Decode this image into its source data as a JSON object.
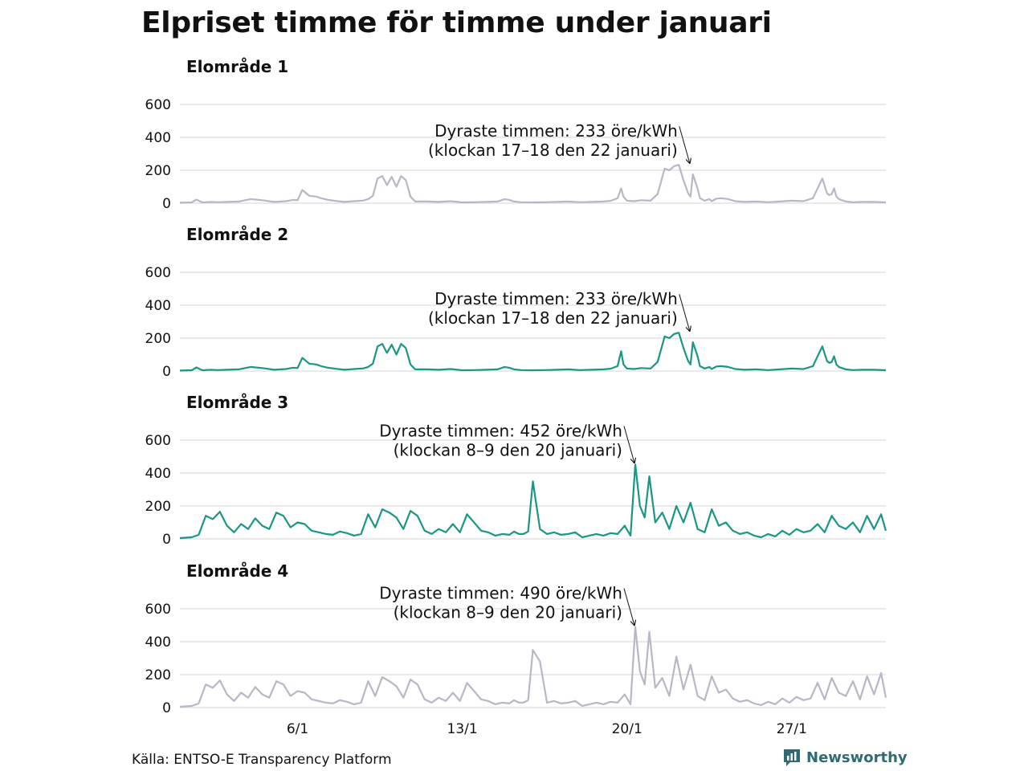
{
  "title": "Elpriset timme för timme under januari",
  "source": "Källa: ENTSO-E Transparency Platform",
  "brand": {
    "name": "Newsworthy",
    "icon": "newsworthy-logo-icon",
    "color": "#2f6b73"
  },
  "colors": {
    "gray": "#b9b6c6",
    "teal": "#1a9784",
    "grid": "#dddddd"
  },
  "chart_data": [
    {
      "type": "line",
      "subtitle": "Elområde 1",
      "color": "gray",
      "xlim": [
        1,
        31
      ],
      "ylim": [
        0,
        600
      ],
      "yticks": [
        0,
        200,
        400,
        600
      ],
      "xticks": [
        {
          "x": 6,
          "label": "6/1"
        },
        {
          "x": 13,
          "label": "13/1"
        },
        {
          "x": 20,
          "label": "20/1"
        },
        {
          "x": 27,
          "label": "27/1"
        }
      ],
      "show_xtick_labels": false,
      "grid": true,
      "annotation": {
        "line1": "Dyraste timmen: 233 öre/kWh",
        "line2": "(klockan 17–18 den 22 januari)",
        "x": 22.7,
        "y": 233
      },
      "x": [
        1,
        1.5,
        1.7,
        1.9,
        2,
        2.3,
        2.6,
        3,
        3.5,
        4,
        4.5,
        5,
        5.5,
        5.8,
        6,
        6.2,
        6.5,
        6.8,
        7,
        7.3,
        7.6,
        8,
        8.4,
        8.8,
        9,
        9.2,
        9.4,
        9.6,
        9.8,
        10,
        10.2,
        10.4,
        10.6,
        10.8,
        11,
        11.5,
        12,
        12.5,
        13,
        13.5,
        14,
        14.5,
        14.8,
        15,
        15.2,
        15.5,
        16,
        16.5,
        17,
        17.5,
        18,
        18.5,
        19,
        19.3,
        19.6,
        19.75,
        19.85,
        20,
        20.3,
        20.6,
        21,
        21.3,
        21.6,
        21.8,
        22,
        22.2,
        22.4,
        22.6,
        22.7,
        22.8,
        23,
        23.1,
        23.3,
        23.5,
        23.6,
        23.8,
        24,
        24.3,
        24.6,
        25,
        25.5,
        26,
        26.5,
        27,
        27.5,
        27.9,
        28.1,
        28.3,
        28.5,
        28.6,
        28.7,
        28.8,
        28.9,
        29,
        29.3,
        29.6,
        30,
        30.5,
        31
      ],
      "y": [
        3,
        5,
        22,
        8,
        5,
        8,
        6,
        8,
        10,
        25,
        18,
        8,
        12,
        20,
        18,
        80,
        45,
        40,
        30,
        20,
        14,
        8,
        12,
        16,
        25,
        45,
        150,
        165,
        110,
        160,
        100,
        165,
        140,
        40,
        10,
        10,
        8,
        12,
        5,
        6,
        8,
        10,
        25,
        20,
        10,
        6,
        5,
        6,
        8,
        10,
        6,
        8,
        10,
        14,
        30,
        90,
        40,
        15,
        12,
        18,
        15,
        55,
        210,
        200,
        225,
        233,
        140,
        60,
        40,
        175,
        90,
        30,
        15,
        25,
        12,
        28,
        30,
        25,
        12,
        8,
        10,
        6,
        10,
        15,
        12,
        30,
        90,
        150,
        60,
        50,
        55,
        90,
        40,
        25,
        10,
        6,
        8,
        8,
        5
      ]
    },
    {
      "type": "line",
      "subtitle": "Elområde 2",
      "color": "teal",
      "xlim": [
        1,
        31
      ],
      "ylim": [
        0,
        600
      ],
      "yticks": [
        0,
        200,
        400,
        600
      ],
      "xticks": [
        {
          "x": 6,
          "label": "6/1"
        },
        {
          "x": 13,
          "label": "13/1"
        },
        {
          "x": 20,
          "label": "20/1"
        },
        {
          "x": 27,
          "label": "27/1"
        }
      ],
      "show_xtick_labels": false,
      "grid": true,
      "annotation": {
        "line1": "Dyraste timmen: 233 öre/kWh",
        "line2": "(klockan 17–18 den 22 januari)",
        "x": 22.7,
        "y": 233
      },
      "x": [
        1,
        1.5,
        1.7,
        1.9,
        2,
        2.3,
        2.6,
        3,
        3.5,
        4,
        4.5,
        5,
        5.5,
        5.8,
        6,
        6.2,
        6.5,
        6.8,
        7,
        7.3,
        7.6,
        8,
        8.4,
        8.8,
        9,
        9.2,
        9.4,
        9.6,
        9.8,
        10,
        10.2,
        10.4,
        10.6,
        10.8,
        11,
        11.5,
        12,
        12.5,
        13,
        13.5,
        14,
        14.5,
        14.8,
        15,
        15.2,
        15.5,
        16,
        16.5,
        17,
        17.5,
        18,
        18.5,
        19,
        19.3,
        19.6,
        19.75,
        19.85,
        20,
        20.3,
        20.6,
        21,
        21.3,
        21.6,
        21.8,
        22,
        22.2,
        22.4,
        22.6,
        22.7,
        22.8,
        23,
        23.1,
        23.3,
        23.5,
        23.6,
        23.8,
        24,
        24.3,
        24.6,
        25,
        25.5,
        26,
        26.5,
        27,
        27.5,
        27.9,
        28.1,
        28.3,
        28.5,
        28.6,
        28.7,
        28.8,
        28.9,
        29,
        29.3,
        29.6,
        30,
        30.5,
        31
      ],
      "y": [
        3,
        5,
        22,
        8,
        5,
        8,
        6,
        8,
        10,
        25,
        18,
        8,
        12,
        20,
        18,
        80,
        45,
        40,
        30,
        20,
        14,
        8,
        12,
        16,
        25,
        45,
        150,
        165,
        110,
        160,
        100,
        165,
        140,
        40,
        10,
        10,
        8,
        12,
        5,
        6,
        8,
        10,
        25,
        20,
        10,
        6,
        5,
        6,
        8,
        10,
        6,
        8,
        10,
        14,
        30,
        120,
        40,
        15,
        12,
        18,
        15,
        55,
        210,
        200,
        225,
        233,
        140,
        60,
        40,
        175,
        90,
        30,
        15,
        25,
        12,
        28,
        30,
        25,
        12,
        8,
        10,
        6,
        10,
        15,
        12,
        30,
        90,
        150,
        60,
        50,
        55,
        90,
        40,
        25,
        10,
        6,
        8,
        8,
        5
      ]
    },
    {
      "type": "line",
      "subtitle": "Elområde 3",
      "color": "teal",
      "xlim": [
        1,
        31
      ],
      "ylim": [
        0,
        600
      ],
      "yticks": [
        0,
        200,
        400,
        600
      ],
      "xticks": [
        {
          "x": 6,
          "label": "6/1"
        },
        {
          "x": 13,
          "label": "13/1"
        },
        {
          "x": 20,
          "label": "20/1"
        },
        {
          "x": 27,
          "label": "27/1"
        }
      ],
      "show_xtick_labels": false,
      "grid": true,
      "annotation": {
        "line1": "Dyraste timmen: 452 öre/kWh",
        "line2": "(klockan 8–9 den 20 januari)",
        "x": 20.35,
        "y": 452
      },
      "x": [
        1,
        1.5,
        1.8,
        2.1,
        2.4,
        2.7,
        3,
        3.3,
        3.6,
        3.9,
        4.2,
        4.5,
        4.8,
        5.1,
        5.4,
        5.7,
        6,
        6.3,
        6.6,
        6.9,
        7.2,
        7.5,
        7.8,
        8.1,
        8.4,
        8.7,
        9,
        9.3,
        9.6,
        9.9,
        10.2,
        10.5,
        10.8,
        11.1,
        11.4,
        11.7,
        12,
        12.3,
        12.6,
        12.9,
        13.2,
        13.5,
        13.8,
        14.1,
        14.4,
        14.7,
        15,
        15.2,
        15.4,
        15.6,
        15.8,
        16,
        16.3,
        16.6,
        16.9,
        17.2,
        17.5,
        17.8,
        18.1,
        18.4,
        18.7,
        19,
        19.3,
        19.6,
        19.9,
        20.15,
        20.35,
        20.55,
        20.75,
        20.95,
        21.2,
        21.5,
        21.8,
        22.1,
        22.4,
        22.7,
        23,
        23.3,
        23.6,
        23.9,
        24.2,
        24.5,
        24.8,
        25.1,
        25.4,
        25.7,
        26,
        26.3,
        26.6,
        26.9,
        27.2,
        27.5,
        27.8,
        28.1,
        28.4,
        28.7,
        29,
        29.3,
        29.6,
        29.9,
        30.2,
        30.5,
        30.8,
        31
      ],
      "y": [
        5,
        10,
        25,
        140,
        120,
        165,
        80,
        40,
        90,
        60,
        125,
        80,
        60,
        160,
        140,
        70,
        100,
        90,
        50,
        40,
        30,
        25,
        45,
        35,
        20,
        30,
        150,
        70,
        180,
        160,
        130,
        60,
        170,
        140,
        50,
        30,
        60,
        40,
        90,
        40,
        150,
        100,
        50,
        40,
        20,
        30,
        25,
        45,
        30,
        30,
        45,
        350,
        60,
        30,
        40,
        25,
        30,
        40,
        10,
        20,
        30,
        20,
        35,
        30,
        80,
        20,
        452,
        200,
        130,
        380,
        100,
        160,
        60,
        200,
        100,
        220,
        60,
        40,
        180,
        80,
        100,
        50,
        30,
        40,
        20,
        10,
        30,
        15,
        50,
        25,
        60,
        40,
        50,
        90,
        40,
        140,
        80,
        60,
        100,
        40,
        140,
        60,
        150,
        50
      ]
    },
    {
      "type": "line",
      "subtitle": "Elområde 4",
      "color": "gray",
      "xlim": [
        1,
        31
      ],
      "ylim": [
        0,
        600
      ],
      "yticks": [
        0,
        200,
        400,
        600
      ],
      "xticks": [
        {
          "x": 6,
          "label": "6/1"
        },
        {
          "x": 13,
          "label": "13/1"
        },
        {
          "x": 20,
          "label": "20/1"
        },
        {
          "x": 27,
          "label": "27/1"
        }
      ],
      "show_xtick_labels": true,
      "grid": true,
      "annotation": {
        "line1": "Dyraste timmen: 490 öre/kWh",
        "line2": "(klockan 8–9 den 20 januari)",
        "x": 20.35,
        "y": 490
      },
      "x": [
        1,
        1.5,
        1.8,
        2.1,
        2.4,
        2.7,
        3,
        3.3,
        3.6,
        3.9,
        4.2,
        4.5,
        4.8,
        5.1,
        5.4,
        5.7,
        6,
        6.3,
        6.6,
        6.9,
        7.2,
        7.5,
        7.8,
        8.1,
        8.4,
        8.7,
        9,
        9.3,
        9.6,
        9.9,
        10.2,
        10.5,
        10.8,
        11.1,
        11.4,
        11.7,
        12,
        12.3,
        12.6,
        12.9,
        13.2,
        13.5,
        13.8,
        14.1,
        14.4,
        14.7,
        15,
        15.2,
        15.4,
        15.6,
        15.8,
        16,
        16.3,
        16.6,
        16.9,
        17.2,
        17.5,
        17.8,
        18.1,
        18.4,
        18.7,
        19,
        19.3,
        19.6,
        19.9,
        20.15,
        20.35,
        20.55,
        20.75,
        20.95,
        21.2,
        21.5,
        21.8,
        22.1,
        22.4,
        22.7,
        23,
        23.3,
        23.6,
        23.9,
        24.2,
        24.5,
        24.8,
        25.1,
        25.4,
        25.7,
        26,
        26.3,
        26.6,
        26.9,
        27.2,
        27.5,
        27.8,
        28.1,
        28.4,
        28.7,
        29,
        29.3,
        29.6,
        29.9,
        30.2,
        30.5,
        30.8,
        31
      ],
      "y": [
        5,
        10,
        25,
        140,
        120,
        165,
        80,
        40,
        90,
        60,
        125,
        80,
        60,
        160,
        140,
        70,
        100,
        90,
        50,
        40,
        30,
        25,
        45,
        35,
        20,
        30,
        160,
        70,
        185,
        160,
        130,
        60,
        170,
        140,
        50,
        30,
        60,
        40,
        90,
        40,
        150,
        100,
        50,
        40,
        20,
        30,
        25,
        45,
        30,
        30,
        45,
        350,
        280,
        30,
        40,
        25,
        30,
        40,
        10,
        20,
        30,
        20,
        35,
        30,
        80,
        20,
        490,
        220,
        140,
        460,
        120,
        180,
        70,
        310,
        110,
        260,
        70,
        45,
        190,
        90,
        110,
        55,
        35,
        45,
        25,
        15,
        35,
        20,
        55,
        30,
        65,
        45,
        55,
        150,
        50,
        180,
        90,
        70,
        160,
        50,
        190,
        80,
        210,
        60
      ]
    }
  ]
}
